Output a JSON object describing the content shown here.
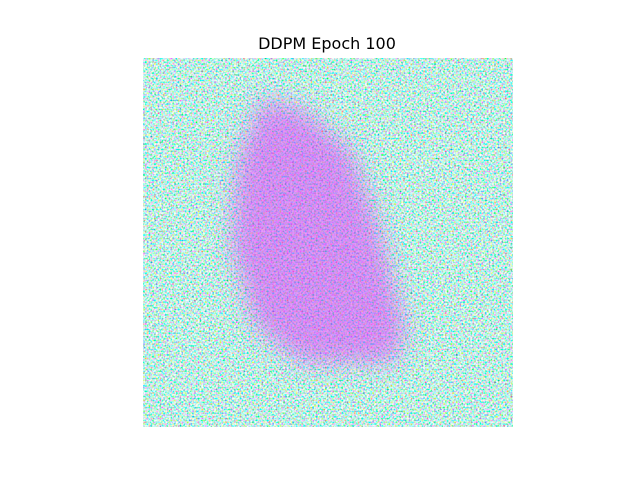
{
  "title": "DDPM Epoch 100"
}
